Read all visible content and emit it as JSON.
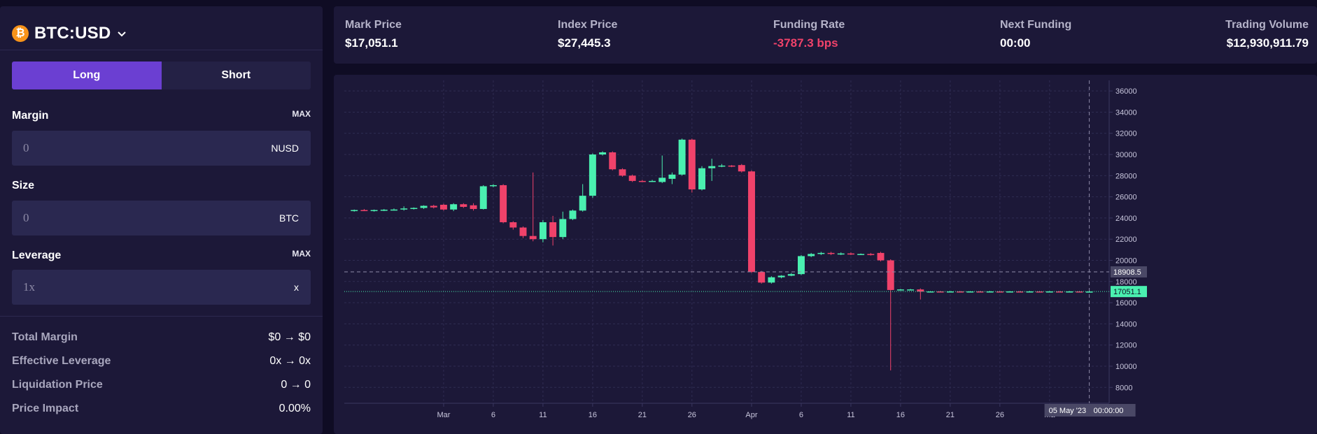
{
  "market": {
    "icon": "bitcoin-icon",
    "symbol": "₿",
    "name": "BTC:USD",
    "chevron": "chevron-down-icon"
  },
  "side": {
    "long": "Long",
    "short": "Short",
    "selected": "Long"
  },
  "margin": {
    "label": "Margin",
    "max": "MAX",
    "placeholder": "0",
    "unit": "NUSD"
  },
  "size": {
    "label": "Size",
    "placeholder": "0",
    "unit": "BTC"
  },
  "leverage": {
    "label": "Leverage",
    "max": "MAX",
    "placeholder": "1x",
    "unit": "x"
  },
  "summary": [
    {
      "key": "Total Margin",
      "value": "$0 → $0"
    },
    {
      "key": "Effective Leverage",
      "value": "0x → 0x"
    },
    {
      "key": "Liquidation Price",
      "value": "0 → 0"
    },
    {
      "key": "Price Impact",
      "value": "0.00%"
    }
  ],
  "stats": [
    {
      "label": "Mark Price",
      "value": "$17,051.1"
    },
    {
      "label": "Index Price",
      "value": "$27,445.3"
    },
    {
      "label": "Funding Rate",
      "value": "-3787.3 bps"
    },
    {
      "label": "Next Funding",
      "value": "00:00"
    },
    {
      "label": "Trading Volume",
      "value": "$12,930,911.79"
    }
  ],
  "colors": {
    "accent": "#6b3fd2",
    "up": "#4af0b0",
    "down": "#f0426a",
    "panel": "#1c1838",
    "background": "#0f0c24"
  },
  "chart_data": {
    "type": "candlestick",
    "y_ticks": [
      8000,
      10000,
      12000,
      14000,
      16000,
      18000,
      20000,
      22000,
      24000,
      26000,
      28000,
      30000,
      32000,
      34000,
      36000
    ],
    "y_tick_labels": [
      "8000",
      "10000",
      "12000",
      "14000",
      "16000",
      "18000",
      "20000",
      "22000",
      "24000",
      "26000",
      "28000",
      "30000",
      "32000",
      "34000",
      "36000"
    ],
    "ylim": [
      6500,
      37000
    ],
    "x_range": [
      "2023-02-19",
      "2023-05-07"
    ],
    "x_ticks": [
      {
        "date": "2023-03-01",
        "label": "Mar"
      },
      {
        "date": "2023-03-06",
        "label": "6"
      },
      {
        "date": "2023-03-11",
        "label": "11"
      },
      {
        "date": "2023-03-16",
        "label": "16"
      },
      {
        "date": "2023-03-21",
        "label": "21"
      },
      {
        "date": "2023-03-26",
        "label": "26"
      },
      {
        "date": "2023-04-01",
        "label": "Apr"
      },
      {
        "date": "2023-04-06",
        "label": "6"
      },
      {
        "date": "2023-04-11",
        "label": "11"
      },
      {
        "date": "2023-04-16",
        "label": "16"
      },
      {
        "date": "2023-04-21",
        "label": "21"
      },
      {
        "date": "2023-04-26",
        "label": "26"
      },
      {
        "date": "2023-05-01",
        "label": "Ma"
      }
    ],
    "candles": [
      {
        "t": "2023-02-20",
        "o": 24700,
        "h": 24800,
        "l": 24600,
        "c": 24750
      },
      {
        "t": "2023-02-21",
        "o": 24750,
        "h": 24850,
        "l": 24650,
        "c": 24700
      },
      {
        "t": "2023-02-22",
        "o": 24700,
        "h": 24800,
        "l": 24600,
        "c": 24750
      },
      {
        "t": "2023-02-23",
        "o": 24750,
        "h": 24850,
        "l": 24650,
        "c": 24780
      },
      {
        "t": "2023-02-24",
        "o": 24780,
        "h": 24900,
        "l": 24700,
        "c": 24800
      },
      {
        "t": "2023-02-25",
        "o": 24800,
        "h": 25100,
        "l": 24700,
        "c": 24900
      },
      {
        "t": "2023-02-26",
        "o": 24900,
        "h": 25000,
        "l": 24800,
        "c": 24950
      },
      {
        "t": "2023-02-27",
        "o": 24950,
        "h": 25200,
        "l": 24850,
        "c": 25150
      },
      {
        "t": "2023-02-28",
        "o": 25150,
        "h": 25250,
        "l": 24900,
        "c": 25000
      },
      {
        "t": "2023-03-01",
        "o": 25250,
        "h": 25350,
        "l": 24700,
        "c": 24800
      },
      {
        "t": "2023-03-02",
        "o": 24800,
        "h": 25400,
        "l": 24650,
        "c": 25300
      },
      {
        "t": "2023-03-03",
        "o": 25300,
        "h": 25400,
        "l": 24950,
        "c": 25050
      },
      {
        "t": "2023-03-04",
        "o": 25200,
        "h": 25400,
        "l": 24700,
        "c": 24850
      },
      {
        "t": "2023-03-05",
        "o": 24850,
        "h": 27100,
        "l": 24800,
        "c": 27000
      },
      {
        "t": "2023-03-06",
        "o": 27000,
        "h": 27200,
        "l": 26900,
        "c": 27100
      },
      {
        "t": "2023-03-07",
        "o": 27100,
        "h": 27200,
        "l": 23500,
        "c": 23600
      },
      {
        "t": "2023-03-08",
        "o": 23600,
        "h": 23700,
        "l": 22900,
        "c": 23100
      },
      {
        "t": "2023-03-09",
        "o": 23100,
        "h": 23200,
        "l": 22100,
        "c": 22300
      },
      {
        "t": "2023-03-10",
        "o": 22300,
        "h": 28300,
        "l": 21800,
        "c": 22000
      },
      {
        "t": "2023-03-11",
        "o": 22000,
        "h": 23800,
        "l": 21700,
        "c": 23600
      },
      {
        "t": "2023-03-12",
        "o": 23600,
        "h": 24200,
        "l": 21400,
        "c": 22200
      },
      {
        "t": "2023-03-13",
        "o": 22200,
        "h": 24600,
        "l": 22000,
        "c": 23900
      },
      {
        "t": "2023-03-14",
        "o": 23900,
        "h": 24800,
        "l": 23800,
        "c": 24700
      },
      {
        "t": "2023-03-15",
        "o": 24700,
        "h": 27200,
        "l": 24600,
        "c": 26100
      },
      {
        "t": "2023-03-16",
        "o": 26100,
        "h": 30100,
        "l": 25900,
        "c": 30000
      },
      {
        "t": "2023-03-17",
        "o": 30000,
        "h": 30300,
        "l": 29900,
        "c": 30200
      },
      {
        "t": "2023-03-18",
        "o": 30200,
        "h": 30300,
        "l": 28500,
        "c": 28600
      },
      {
        "t": "2023-03-19",
        "o": 28600,
        "h": 28700,
        "l": 27900,
        "c": 28000
      },
      {
        "t": "2023-03-20",
        "o": 28000,
        "h": 28100,
        "l": 27400,
        "c": 27500
      },
      {
        "t": "2023-03-21",
        "o": 27500,
        "h": 27600,
        "l": 27400,
        "c": 27450
      },
      {
        "t": "2023-03-22",
        "o": 27450,
        "h": 27600,
        "l": 27400,
        "c": 27500
      },
      {
        "t": "2023-03-23",
        "o": 27400,
        "h": 29900,
        "l": 27300,
        "c": 27800
      },
      {
        "t": "2023-03-24",
        "o": 27700,
        "h": 28300,
        "l": 27200,
        "c": 28100
      },
      {
        "t": "2023-03-25",
        "o": 28100,
        "h": 31500,
        "l": 28000,
        "c": 31400
      },
      {
        "t": "2023-03-26",
        "o": 31400,
        "h": 31500,
        "l": 26400,
        "c": 26700
      },
      {
        "t": "2023-03-27",
        "o": 26700,
        "h": 28900,
        "l": 26600,
        "c": 28700
      },
      {
        "t": "2023-03-28",
        "o": 28700,
        "h": 29600,
        "l": 27500,
        "c": 28900
      },
      {
        "t": "2023-03-29",
        "o": 28900,
        "h": 29100,
        "l": 28800,
        "c": 28950
      },
      {
        "t": "2023-03-30",
        "o": 28950,
        "h": 29000,
        "l": 28800,
        "c": 28900
      },
      {
        "t": "2023-03-31",
        "o": 29000,
        "h": 29100,
        "l": 28300,
        "c": 28400
      },
      {
        "t": "2023-04-01",
        "o": 28400,
        "h": 28500,
        "l": 18800,
        "c": 18900
      },
      {
        "t": "2023-04-02",
        "o": 18900,
        "h": 19000,
        "l": 17800,
        "c": 17900
      },
      {
        "t": "2023-04-03",
        "o": 17900,
        "h": 18500,
        "l": 17800,
        "c": 18400
      },
      {
        "t": "2023-04-04",
        "o": 18400,
        "h": 18600,
        "l": 18300,
        "c": 18550
      },
      {
        "t": "2023-04-05",
        "o": 18550,
        "h": 18800,
        "l": 18500,
        "c": 18700
      },
      {
        "t": "2023-04-06",
        "o": 18700,
        "h": 20500,
        "l": 18600,
        "c": 20400
      },
      {
        "t": "2023-04-07",
        "o": 20400,
        "h": 20700,
        "l": 20300,
        "c": 20600
      },
      {
        "t": "2023-04-08",
        "o": 20600,
        "h": 20800,
        "l": 20500,
        "c": 20700
      },
      {
        "t": "2023-04-09",
        "o": 20700,
        "h": 20800,
        "l": 20500,
        "c": 20600
      },
      {
        "t": "2023-04-10",
        "o": 20600,
        "h": 20750,
        "l": 20500,
        "c": 20650
      },
      {
        "t": "2023-04-11",
        "o": 20650,
        "h": 20750,
        "l": 20500,
        "c": 20550
      },
      {
        "t": "2023-04-12",
        "o": 20550,
        "h": 20650,
        "l": 20500,
        "c": 20600
      },
      {
        "t": "2023-04-13",
        "o": 20600,
        "h": 20700,
        "l": 20450,
        "c": 20500
      },
      {
        "t": "2023-04-14",
        "o": 20700,
        "h": 20800,
        "l": 19900,
        "c": 20000
      },
      {
        "t": "2023-04-15",
        "o": 20000,
        "h": 20100,
        "l": 9600,
        "c": 17200
      },
      {
        "t": "2023-04-16",
        "o": 17200,
        "h": 17300,
        "l": 17150,
        "c": 17250
      },
      {
        "t": "2023-04-17",
        "o": 17250,
        "h": 17300,
        "l": 17200,
        "c": 17250
      },
      {
        "t": "2023-04-18",
        "o": 17250,
        "h": 17350,
        "l": 16300,
        "c": 17050
      },
      {
        "t": "2023-04-19",
        "o": 17050,
        "h": 17100,
        "l": 17000,
        "c": 17060
      },
      {
        "t": "2023-04-20",
        "o": 17060,
        "h": 17100,
        "l": 17000,
        "c": 17050
      },
      {
        "t": "2023-04-21",
        "o": 17050,
        "h": 17100,
        "l": 17000,
        "c": 17060
      },
      {
        "t": "2023-04-22",
        "o": 17060,
        "h": 17100,
        "l": 17000,
        "c": 17050
      },
      {
        "t": "2023-04-23",
        "o": 17050,
        "h": 17100,
        "l": 17000,
        "c": 17060
      },
      {
        "t": "2023-04-24",
        "o": 17060,
        "h": 17100,
        "l": 17000,
        "c": 17050
      },
      {
        "t": "2023-04-25",
        "o": 17050,
        "h": 17100,
        "l": 17000,
        "c": 17060
      },
      {
        "t": "2023-04-26",
        "o": 17060,
        "h": 17100,
        "l": 17000,
        "c": 17050
      },
      {
        "t": "2023-04-27",
        "o": 17050,
        "h": 17100,
        "l": 17000,
        "c": 17060
      },
      {
        "t": "2023-04-28",
        "o": 17060,
        "h": 17100,
        "l": 17000,
        "c": 17050
      },
      {
        "t": "2023-04-29",
        "o": 17050,
        "h": 17100,
        "l": 17000,
        "c": 17060
      },
      {
        "t": "2023-04-30",
        "o": 17060,
        "h": 17100,
        "l": 17000,
        "c": 17050
      },
      {
        "t": "2023-05-01",
        "o": 17050,
        "h": 17100,
        "l": 17000,
        "c": 17060
      },
      {
        "t": "2023-05-02",
        "o": 17060,
        "h": 17100,
        "l": 17000,
        "c": 17050
      },
      {
        "t": "2023-05-03",
        "o": 17050,
        "h": 17100,
        "l": 17000,
        "c": 17060
      },
      {
        "t": "2023-05-04",
        "o": 17060,
        "h": 17100,
        "l": 17000,
        "c": 17050
      },
      {
        "t": "2023-05-05",
        "o": 17050,
        "h": 17100,
        "l": 17000,
        "c": 17051.1
      }
    ],
    "last_price": {
      "value": 17051.1,
      "label": "17051.1"
    },
    "crosshair": {
      "date": "2023-05-05",
      "price": 18908.5,
      "price_label": "18908.5",
      "date_label": "05 May '23",
      "time_label": "00:00:00"
    },
    "grid": true
  }
}
